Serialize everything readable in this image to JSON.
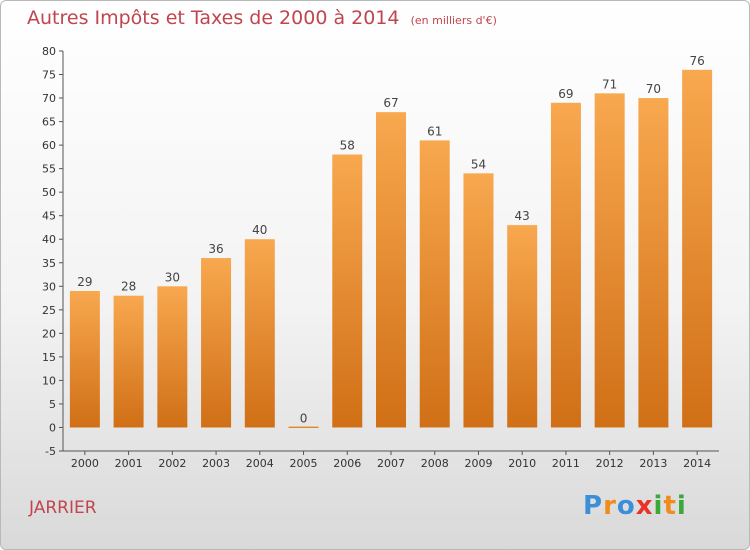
{
  "title": "Autres Impôts et Taxes de 2000 à 2014",
  "unit": "(en milliers d'€)",
  "commune": "JARRIER",
  "logo": {
    "letters": [
      "P",
      "r",
      "o",
      "x",
      "i",
      "t",
      "i"
    ],
    "colors": [
      "#3a8fd8",
      "#f08c1e",
      "#3a8fd8",
      "#e8322a",
      "#3aa83a",
      "#f08c1e",
      "#3aa83a"
    ]
  },
  "chart_data": {
    "type": "bar",
    "title": "Autres Impôts et Taxes de 2000 à 2014",
    "categories": [
      "2000",
      "2001",
      "2002",
      "2003",
      "2004",
      "2005",
      "2006",
      "2007",
      "2008",
      "2009",
      "2010",
      "2011",
      "2012",
      "2013",
      "2014"
    ],
    "values": [
      29,
      28,
      30,
      36,
      40,
      0,
      58,
      67,
      61,
      54,
      43,
      69,
      71,
      70,
      76
    ],
    "ylim": [
      -5,
      80
    ],
    "yticks": [
      -5,
      0,
      5,
      10,
      15,
      20,
      25,
      30,
      35,
      40,
      45,
      50,
      55,
      60,
      65,
      70,
      75,
      80
    ],
    "grid": false,
    "bar_color": "#f0933a"
  }
}
